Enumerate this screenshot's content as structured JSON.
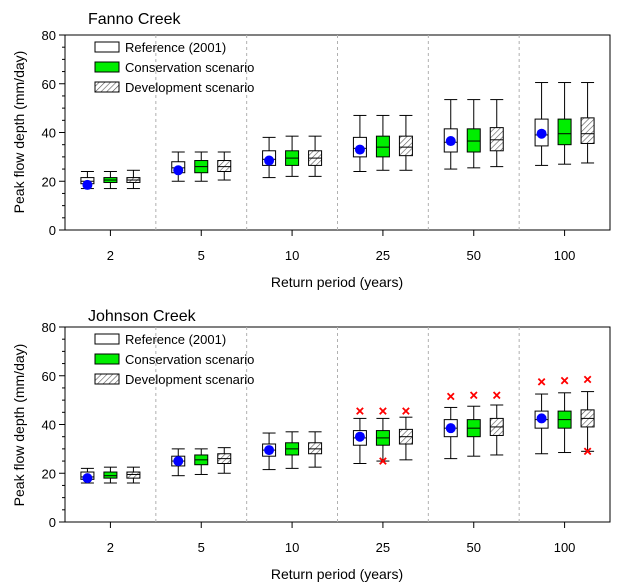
{
  "chart_data": [
    {
      "type": "box",
      "title": "Fanno Creek",
      "xlabel": "Return period (years)",
      "ylabel": "Peak flow depth (mm/day)",
      "ylim": [
        0,
        80
      ],
      "yticks": [
        0,
        20,
        40,
        60,
        80
      ],
      "minor_ytick_step": 5,
      "categories": [
        "2",
        "5",
        "10",
        "25",
        "50",
        "100"
      ],
      "legend": {
        "placement": "top-left"
      },
      "series": [
        {
          "name": "Reference (2001)",
          "color": "#ffffff",
          "pattern": "none",
          "boxes": [
            {
              "min": 17,
              "q1": 19,
              "median": 20,
              "q3": 21.5,
              "max": 24,
              "mean": 18.5
            },
            {
              "min": 20,
              "q1": 23.5,
              "median": 25.5,
              "q3": 28,
              "max": 32,
              "mean": 24.5
            },
            {
              "min": 21.5,
              "q1": 26.5,
              "median": 29,
              "q3": 32.5,
              "max": 38,
              "mean": 28.5
            },
            {
              "min": 24,
              "q1": 30,
              "median": 33.5,
              "q3": 38,
              "max": 47,
              "mean": 33
            },
            {
              "min": 25,
              "q1": 32,
              "median": 36,
              "q3": 41.5,
              "max": 53.5,
              "mean": 36.5
            },
            {
              "min": 26.5,
              "q1": 34.5,
              "median": 39,
              "q3": 45.5,
              "max": 60.5,
              "mean": 39.5
            }
          ]
        },
        {
          "name": "Conservation scenario",
          "color": "#00ee00",
          "pattern": "solid",
          "boxes": [
            {
              "min": 17,
              "q1": 19.5,
              "median": 20.5,
              "q3": 21.5,
              "max": 24
            },
            {
              "min": 20,
              "q1": 23.5,
              "median": 26,
              "q3": 28.5,
              "max": 32
            },
            {
              "min": 22,
              "q1": 26.5,
              "median": 29.5,
              "q3": 32.5,
              "max": 38.5
            },
            {
              "min": 24.5,
              "q1": 30,
              "median": 34,
              "q3": 38.5,
              "max": 47
            },
            {
              "min": 25.5,
              "q1": 32,
              "median": 36.5,
              "q3": 41.5,
              "max": 53.5
            },
            {
              "min": 27,
              "q1": 35,
              "median": 39.5,
              "q3": 45.5,
              "max": 60.5
            }
          ]
        },
        {
          "name": "Development scenario",
          "color": "#ffffff",
          "pattern": "hatch",
          "boxes": [
            {
              "min": 17,
              "q1": 19.5,
              "median": 20.5,
              "q3": 21.5,
              "max": 24.5
            },
            {
              "min": 20.5,
              "q1": 24,
              "median": 26,
              "q3": 28.5,
              "max": 32
            },
            {
              "min": 22,
              "q1": 26.5,
              "median": 29.5,
              "q3": 32.5,
              "max": 38.5
            },
            {
              "min": 24.5,
              "q1": 30.5,
              "median": 34,
              "q3": 38.5,
              "max": 47
            },
            {
              "min": 26,
              "q1": 32.5,
              "median": 37,
              "q3": 42,
              "max": 53.5
            },
            {
              "min": 27.5,
              "q1": 35.5,
              "median": 39.5,
              "q3": 46,
              "max": 60.5
            }
          ]
        }
      ]
    },
    {
      "type": "box",
      "title": "Johnson Creek",
      "xlabel": "Return period (years)",
      "ylabel": "Peak flow depth (mm/day)",
      "ylim": [
        0,
        80
      ],
      "yticks": [
        0,
        20,
        40,
        60,
        80
      ],
      "minor_ytick_step": 5,
      "categories": [
        "2",
        "5",
        "10",
        "25",
        "50",
        "100"
      ],
      "legend": {
        "placement": "top-left"
      },
      "series": [
        {
          "name": "Reference (2001)",
          "color": "#ffffff",
          "pattern": "none",
          "boxes": [
            {
              "min": 16,
              "q1": 17.5,
              "median": 18.5,
              "q3": 20.5,
              "max": 22,
              "mean": 18
            },
            {
              "min": 19,
              "q1": 23,
              "median": 25,
              "q3": 27,
              "max": 30,
              "mean": 25
            },
            {
              "min": 21.5,
              "q1": 27,
              "median": 29.5,
              "q3": 32,
              "max": 36.5,
              "mean": 29.5
            },
            {
              "min": 24,
              "q1": 31.5,
              "median": 34.5,
              "q3": 37.5,
              "max": 42.5,
              "mean": 35,
              "outliers": [
                45.5
              ]
            },
            {
              "min": 26,
              "q1": 35,
              "median": 38.5,
              "q3": 42,
              "max": 47,
              "mean": 38.5,
              "outliers": [
                51.5
              ]
            },
            {
              "min": 28,
              "q1": 38.5,
              "median": 42,
              "q3": 45.5,
              "max": 52.5,
              "mean": 42.5,
              "outliers": [
                57.5
              ]
            }
          ]
        },
        {
          "name": "Conservation scenario",
          "color": "#00ee00",
          "pattern": "solid",
          "boxes": [
            {
              "min": 16,
              "q1": 18,
              "median": 19,
              "q3": 20.5,
              "max": 22.5
            },
            {
              "min": 19.5,
              "q1": 23.5,
              "median": 25.5,
              "q3": 27.5,
              "max": 30
            },
            {
              "min": 22,
              "q1": 27.5,
              "median": 30,
              "q3": 32.5,
              "max": 37
            },
            {
              "min": 25,
              "q1": 31.5,
              "median": 34.5,
              "q3": 37.5,
              "max": 42.5,
              "outliers": [
                45.5,
                25
              ]
            },
            {
              "min": 27,
              "q1": 35,
              "median": 38.5,
              "q3": 42,
              "max": 47.5,
              "outliers": [
                52
              ]
            },
            {
              "min": 28.5,
              "q1": 38.5,
              "median": 42,
              "q3": 45.5,
              "max": 53,
              "outliers": [
                58
              ]
            }
          ]
        },
        {
          "name": "Development scenario",
          "color": "#ffffff",
          "pattern": "hatch",
          "boxes": [
            {
              "min": 16,
              "q1": 18,
              "median": 19.5,
              "q3": 20.5,
              "max": 22.5
            },
            {
              "min": 20,
              "q1": 24,
              "median": 26,
              "q3": 28,
              "max": 30.5
            },
            {
              "min": 22.5,
              "q1": 28,
              "median": 30,
              "q3": 32.5,
              "max": 37
            },
            {
              "min": 25.5,
              "q1": 32,
              "median": 35,
              "q3": 38,
              "max": 43,
              "outliers": [
                45.5
              ]
            },
            {
              "min": 27.5,
              "q1": 35.5,
              "median": 39,
              "q3": 42.5,
              "max": 48,
              "outliers": [
                52
              ]
            },
            {
              "min": 29,
              "q1": 39,
              "median": 42.5,
              "q3": 46,
              "max": 53.5,
              "outliers": [
                58.5,
                29
              ]
            }
          ]
        }
      ]
    }
  ],
  "colors": {
    "mean_marker": "#0000ff",
    "outlier_marker": "#ff0000",
    "category_divider": "#b0b0b0"
  }
}
